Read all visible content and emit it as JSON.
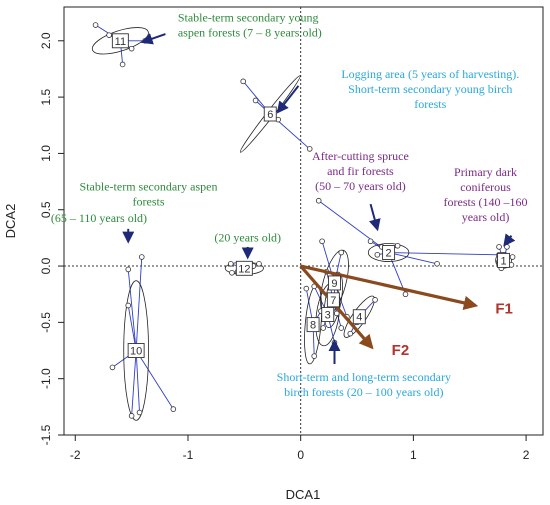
{
  "chart_data": {
    "type": "scatter",
    "xlabel": "DCA1",
    "ylabel": "DCA2",
    "xlim": [
      -2.1,
      2.15
    ],
    "ylim": [
      -1.5,
      2.3
    ],
    "xticks": [
      -2,
      -1,
      0,
      1,
      2
    ],
    "yticks": [
      -1.5,
      -1.0,
      -0.5,
      0.0,
      0.5,
      1.0,
      1.5,
      2.0
    ],
    "grid": false,
    "reference_lines": {
      "x": 0,
      "y": 0
    },
    "sites": [
      {
        "label": "1",
        "centroid": [
          1.8,
          0.05
        ],
        "ellipse_rx": 0.07,
        "ellipse_ry": 0.07,
        "ellipse_angle": 0,
        "points": [
          [
            1.76,
            0.17
          ],
          [
            1.83,
            0.17
          ],
          [
            1.88,
            0.08
          ],
          [
            1.76,
            0.04
          ],
          [
            1.87,
            0.01
          ],
          [
            1.78,
            -0.02
          ]
        ]
      },
      {
        "label": "2",
        "centroid": [
          0.78,
          0.12
        ],
        "ellipse_rx": 0.18,
        "ellipse_ry": 0.08,
        "ellipse_angle": 0,
        "points": [
          [
            0.16,
            0.58
          ],
          [
            0.62,
            0.22
          ],
          [
            1.76,
            0.1
          ],
          [
            1.21,
            0.02
          ],
          [
            0.93,
            -0.25
          ],
          [
            0.86,
            0.18
          ],
          [
            0.68,
            0.1
          ],
          [
            0.72,
            0.17
          ]
        ]
      },
      {
        "label": "3",
        "centroid": [
          0.24,
          -0.43
        ],
        "ellipse_rx": 0.1,
        "ellipse_ry": 0.28,
        "ellipse_angle": 8,
        "points": [
          [
            0.12,
            -0.18
          ],
          [
            0.3,
            -0.68
          ],
          [
            0.2,
            -0.55
          ],
          [
            0.33,
            -0.3
          ]
        ]
      },
      {
        "label": "4",
        "centroid": [
          0.52,
          -0.45
        ],
        "ellipse_rx": 0.06,
        "ellipse_ry": 0.22,
        "ellipse_angle": 35,
        "points": [
          [
            0.66,
            -0.3
          ],
          [
            0.44,
            -0.6
          ],
          [
            0.5,
            -0.5
          ]
        ]
      },
      {
        "label": "6",
        "centroid": [
          -0.27,
          1.35
        ],
        "ellipse_rx": 0.43,
        "ellipse_ry": 0.03,
        "ellipse_angle": -52,
        "points": [
          [
            -0.51,
            1.64
          ],
          [
            -0.4,
            1.47
          ],
          [
            0.08,
            1.04
          ],
          [
            -0.2,
            1.3
          ]
        ]
      },
      {
        "label": "7",
        "centroid": [
          0.29,
          -0.3
        ],
        "ellipse_rx": 0.07,
        "ellipse_ry": 0.25,
        "ellipse_angle": 10,
        "points": [
          [
            0.23,
            -0.05
          ],
          [
            0.36,
            -0.55
          ],
          [
            0.32,
            -0.42
          ]
        ]
      },
      {
        "label": "8",
        "centroid": [
          0.11,
          -0.52
        ],
        "ellipse_rx": 0.07,
        "ellipse_ry": 0.35,
        "ellipse_angle": 5,
        "points": [
          [
            0.05,
            -0.2
          ],
          [
            0.12,
            -0.8
          ],
          [
            0.18,
            -0.4
          ]
        ]
      },
      {
        "label": "9",
        "centroid": [
          0.3,
          -0.15
        ],
        "ellipse_rx": 0.1,
        "ellipse_ry": 0.3,
        "ellipse_angle": 15,
        "points": [
          [
            0.19,
            0.22
          ],
          [
            0.36,
            0.12
          ],
          [
            0.41,
            -0.45
          ],
          [
            0.3,
            -0.35
          ]
        ]
      },
      {
        "label": "10",
        "centroid": [
          -1.46,
          -0.75
        ],
        "ellipse_rx": 0.11,
        "ellipse_ry": 0.62,
        "ellipse_angle": 0,
        "points": [
          [
            -1.41,
            0.08
          ],
          [
            -1.53,
            -0.03
          ],
          [
            -1.67,
            -0.9
          ],
          [
            -1.5,
            -1.33
          ],
          [
            -1.43,
            -1.3
          ],
          [
            -1.13,
            -1.27
          ],
          [
            -1.53,
            -0.35
          ]
        ]
      },
      {
        "label": "11",
        "centroid": [
          -1.6,
          2.0
        ],
        "ellipse_rx": 0.26,
        "ellipse_ry": 0.09,
        "ellipse_angle": -18,
        "points": [
          [
            -1.82,
            2.14
          ],
          [
            -1.58,
            1.79
          ],
          [
            -1.38,
            2.0
          ],
          [
            -1.7,
            2.05
          ],
          [
            -1.5,
            1.93
          ]
        ]
      },
      {
        "label": "12",
        "centroid": [
          -0.5,
          -0.02
        ],
        "ellipse_rx": 0.17,
        "ellipse_ry": 0.055,
        "ellipse_angle": 0,
        "points": [
          [
            -0.62,
            0.02
          ],
          [
            -0.56,
            -0.05
          ],
          [
            -0.42,
            0.0
          ],
          [
            -0.37,
            0.02
          ],
          [
            -0.61,
            -0.06
          ]
        ]
      }
    ],
    "vectors": [
      {
        "label": "F1",
        "end": [
          1.55,
          -0.35
        ]
      },
      {
        "label": "F2",
        "end": [
          0.63,
          -0.72
        ]
      }
    ],
    "annotations": [
      {
        "lines": [
          "Stable-term secondary young",
          "aspen forests (7 – 8 years old)"
        ],
        "color": "#2e8b3c",
        "at": [
          -1.09,
          2.17
        ],
        "anchor": "start",
        "arrow": [
          [
            -1.2,
            2.06
          ],
          [
            -1.4,
            1.99
          ]
        ]
      },
      {
        "lines": [
          "Logging area (5 years of harvesting).",
          "Short-term secondary young birch",
          "forests"
        ],
        "color": "#2aa7dc",
        "at": [
          1.15,
          1.67
        ],
        "anchor": "middle",
        "arrow": [
          [
            -0.02,
            1.6
          ],
          [
            -0.2,
            1.37
          ]
        ]
      },
      {
        "lines": [
          "After-cutting spruce",
          "and fir forests",
          "(50 – 70 years old)"
        ],
        "color": "#7b2a86",
        "at": [
          0.53,
          0.94
        ],
        "anchor": "middle",
        "arrow": [
          [
            0.62,
            0.55
          ],
          [
            0.68,
            0.33
          ]
        ]
      },
      {
        "lines": [
          "Primary dark",
          "coniferous",
          "forests (140 –160",
          "years old)"
        ],
        "color": "#7b2a86",
        "at": [
          1.64,
          0.8
        ],
        "anchor": "middle",
        "arrow": [
          [
            1.87,
            0.27
          ],
          [
            1.81,
            0.19
          ]
        ]
      },
      {
        "lines": [
          "Stable-term secondary aspen",
          "forests"
        ],
        "color": "#2e8b3c",
        "at": [
          -1.35,
          0.67
        ],
        "anchor": "middle",
        "arrow": null
      },
      {
        "lines": [
          "(65 – 110 years old)"
        ],
        "color": "#2e8b3c",
        "at": [
          -1.79,
          0.39
        ],
        "anchor": "middle",
        "arrow": [
          [
            -1.53,
            0.33
          ],
          [
            -1.53,
            0.22
          ]
        ]
      },
      {
        "lines": [
          "(20 years old)"
        ],
        "color": "#2e8b3c",
        "at": [
          -0.47,
          0.22
        ],
        "anchor": "middle",
        "arrow": [
          [
            -0.47,
            0.17
          ],
          [
            -0.47,
            0.08
          ]
        ]
      },
      {
        "lines": [
          "Short-term and long-term secondary",
          "birch forests (20 – 100 years old)"
        ],
        "color": "#2aa7dc",
        "at": [
          0.56,
          -1.02
        ],
        "anchor": "middle",
        "arrow": [
          [
            0.3,
            -0.87
          ],
          [
            0.3,
            -0.67
          ]
        ]
      }
    ]
  }
}
